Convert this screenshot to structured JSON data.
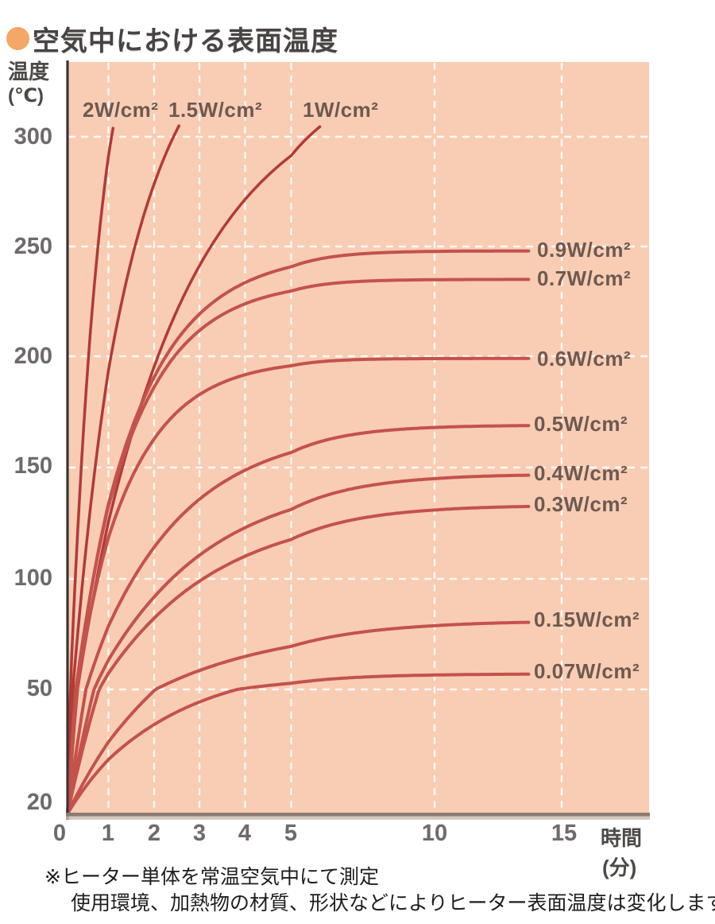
{
  "page": {
    "title": "空気中における表面温度"
  },
  "colors": {
    "plot_background": "#f8cdb4",
    "grid_line": "#ffffff",
    "curve_steep": "#b23a37",
    "curve_flat": "#c4524c",
    "y_axis_line": "#3a3533",
    "x_axis_bar": "#8d7b72",
    "x_axis_bar_shadow": "#cdbcb2",
    "bullet": "#f4a766"
  },
  "chart_data": {
    "type": "line",
    "title": "空気中における表面温度",
    "x_axis": {
      "label": "時間",
      "unit": "(分)",
      "tick_labels": [
        "0",
        "1",
        "2",
        "3",
        "4",
        "5",
        "10",
        "15"
      ],
      "tick_values": [
        0,
        1,
        2,
        3,
        4,
        5,
        10,
        15
      ],
      "grid_ticks": [
        1,
        2,
        3,
        4,
        5,
        10,
        15
      ],
      "range_min": 0,
      "range_max": 15
    },
    "y_axis": {
      "label": "温度",
      "unit": "(℃)",
      "tick_labels": [
        "300",
        "250",
        "200",
        "150",
        "100",
        "50",
        "20"
      ],
      "tick_values": [
        300,
        250,
        200,
        150,
        100,
        50,
        20
      ],
      "grid_ticks": [
        300,
        250,
        200,
        150,
        100,
        50
      ],
      "range_min": 20,
      "range_max": 305
    },
    "origin_temp_c": 20,
    "grid": true,
    "legend_position": "inline-labels",
    "series": [
      {
        "label": "2W/cm²",
        "watt_density_w_cm2": 2.0,
        "approx_final_temp_c": null,
        "exceeds_chart": true,
        "render": {
          "t_inf": 400,
          "tau": 0.8
        }
      },
      {
        "label": "1.5W/cm²",
        "watt_density_w_cm2": 1.5,
        "approx_final_temp_c": null,
        "exceeds_chart": true,
        "render": {
          "t_inf": 360,
          "tau": 1.4
        }
      },
      {
        "label": "1W/cm²",
        "watt_density_w_cm2": 1.0,
        "approx_final_temp_c": null,
        "exceeds_chart": true,
        "render": {
          "t_inf": 330,
          "tau": 2.4
        }
      },
      {
        "label": "0.9W/cm²",
        "watt_density_w_cm2": 0.9,
        "approx_final_temp_c": 248,
        "exceeds_chart": false,
        "render": {
          "t_inf": 248,
          "tau": 1.45
        }
      },
      {
        "label": "0.7W/cm²",
        "watt_density_w_cm2": 0.7,
        "approx_final_temp_c": 235,
        "exceeds_chart": false,
        "render": {
          "t_inf": 235,
          "tau": 1.35
        }
      },
      {
        "label": "0.6W/cm²",
        "watt_density_w_cm2": 0.6,
        "approx_final_temp_c": 199,
        "exceeds_chart": false,
        "render": {
          "t_inf": 199,
          "tau": 1.25
        }
      },
      {
        "label": "0.5W/cm²",
        "watt_density_w_cm2": 0.5,
        "approx_final_temp_c": 169,
        "exceeds_chart": false,
        "render": {
          "t_inf": 169,
          "tau": 2.0
        }
      },
      {
        "label": "0.4W/cm²",
        "watt_density_w_cm2": 0.4,
        "approx_final_temp_c": 147,
        "exceeds_chart": false,
        "render": {
          "t_inf": 147,
          "tau": 2.4
        }
      },
      {
        "label": "0.3W/cm²",
        "watt_density_w_cm2": 0.3,
        "approx_final_temp_c": 133,
        "exceeds_chart": false,
        "render": {
          "t_inf": 133,
          "tau": 2.5
        }
      },
      {
        "label": "0.15W/cm²",
        "watt_density_w_cm2": 0.15,
        "approx_final_temp_c": 81,
        "exceeds_chart": false,
        "render": {
          "t_inf": 81,
          "tau": 3.0
        }
      },
      {
        "label": "0.07W/cm²",
        "watt_density_w_cm2": 0.07,
        "approx_final_temp_c": 57,
        "exceeds_chart": false,
        "render": {
          "t_inf": 57,
          "tau": 2.3
        }
      }
    ],
    "footnotes": [
      "※ヒーター単体を常温空気中にて測定",
      "使用環境、加熱物の材質、形状などによりヒーター表面温度は変化します。"
    ]
  }
}
